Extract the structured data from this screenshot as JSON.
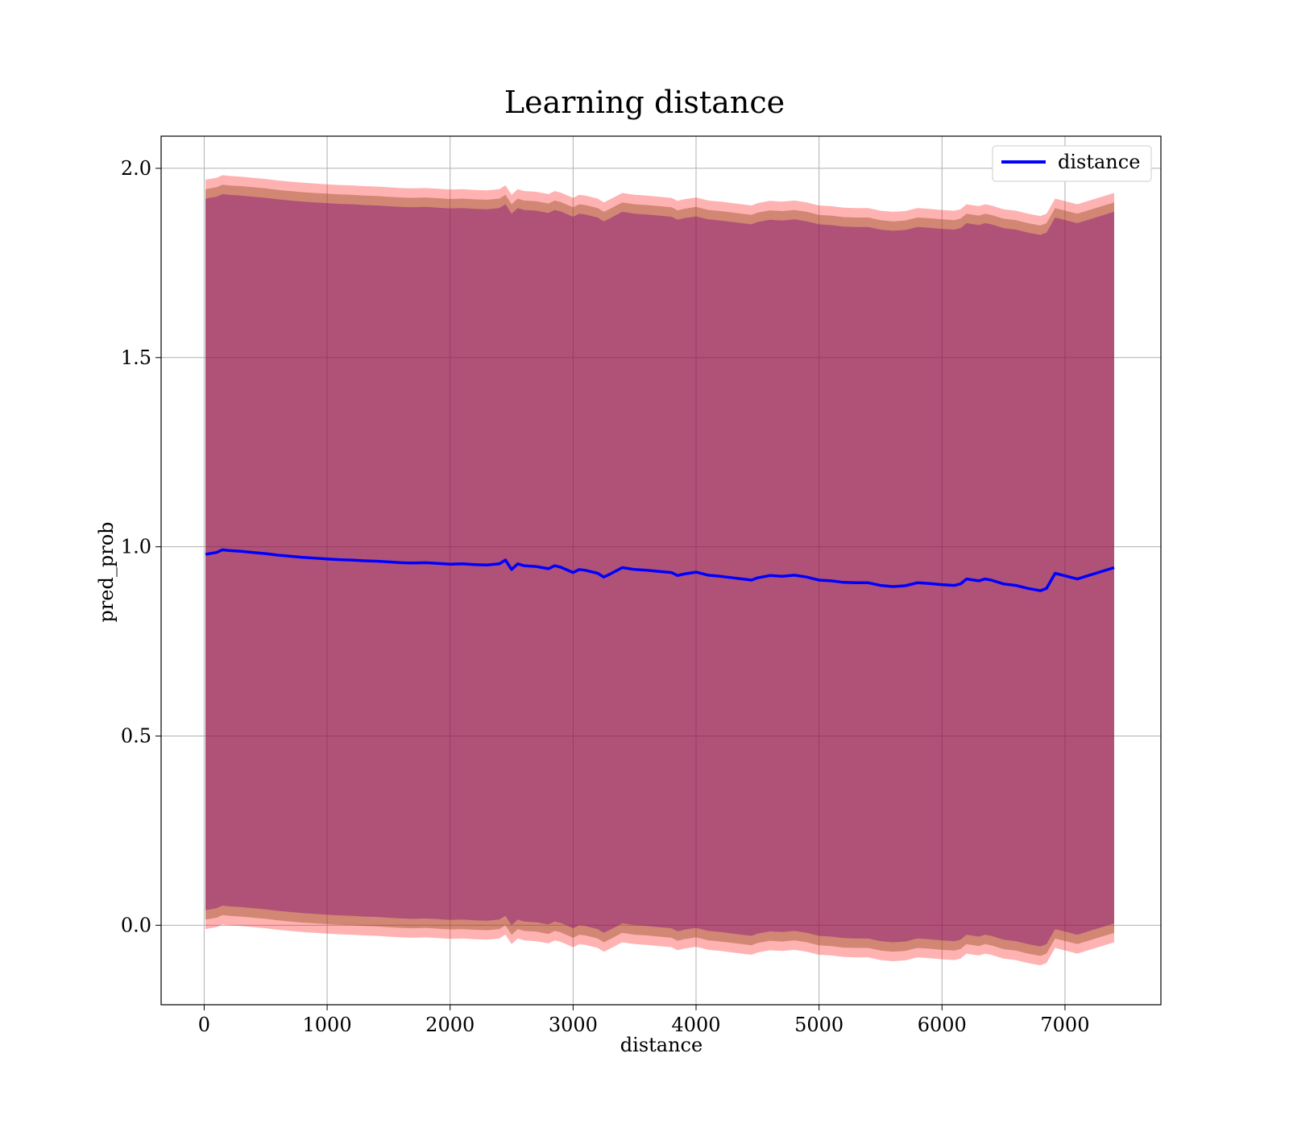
{
  "chart_data": {
    "type": "line",
    "title": "Learning distance",
    "xlabel": "distance",
    "ylabel": "pred_prob",
    "xlim": [
      -350,
      7780
    ],
    "ylim": [
      -0.21,
      2.085
    ],
    "xticks": [
      0,
      1000,
      2000,
      3000,
      4000,
      5000,
      6000,
      7000
    ],
    "xtick_labels": [
      "0",
      "1000",
      "2000",
      "3000",
      "4000",
      "5000",
      "6000",
      "7000"
    ],
    "yticks": [
      0.0,
      0.5,
      1.0,
      1.5,
      2.0
    ],
    "ytick_labels": [
      "0.0",
      "0.5",
      "1.0",
      "1.5",
      "2.0"
    ],
    "grid": true,
    "legend": {
      "position": "upper right",
      "entries": [
        "distance"
      ]
    },
    "colors": {
      "line": "#0000ff",
      "band_outer": "#ff0000",
      "band_mid": "#8b4513",
      "band_inner": "#800080"
    },
    "series": [
      {
        "name": "distance",
        "x": [
          10,
          100,
          150,
          200,
          300,
          400,
          500,
          600,
          700,
          800,
          900,
          1000,
          1100,
          1200,
          1300,
          1400,
          1500,
          1600,
          1700,
          1800,
          1900,
          2000,
          2100,
          2200,
          2300,
          2400,
          2450,
          2500,
          2550,
          2600,
          2700,
          2800,
          2850,
          2900,
          3000,
          3050,
          3100,
          3200,
          3250,
          3300,
          3400,
          3500,
          3600,
          3700,
          3800,
          3850,
          3900,
          4000,
          4100,
          4200,
          4300,
          4400,
          4450,
          4500,
          4600,
          4700,
          4800,
          4900,
          5000,
          5100,
          5200,
          5300,
          5400,
          5500,
          5600,
          5700,
          5800,
          5900,
          6000,
          6100,
          6150,
          6200,
          6300,
          6350,
          6400,
          6500,
          6600,
          6700,
          6800,
          6850,
          6920,
          7100,
          7400
        ],
        "values": [
          0.98,
          0.985,
          0.992,
          0.99,
          0.988,
          0.985,
          0.982,
          0.978,
          0.975,
          0.972,
          0.97,
          0.968,
          0.966,
          0.965,
          0.963,
          0.962,
          0.96,
          0.958,
          0.957,
          0.958,
          0.956,
          0.954,
          0.955,
          0.953,
          0.952,
          0.955,
          0.965,
          0.94,
          0.955,
          0.95,
          0.948,
          0.942,
          0.95,
          0.946,
          0.932,
          0.94,
          0.938,
          0.93,
          0.92,
          0.928,
          0.945,
          0.94,
          0.938,
          0.935,
          0.932,
          0.924,
          0.928,
          0.933,
          0.925,
          0.922,
          0.918,
          0.914,
          0.912,
          0.918,
          0.924,
          0.922,
          0.925,
          0.92,
          0.912,
          0.91,
          0.906,
          0.905,
          0.905,
          0.898,
          0.895,
          0.897,
          0.905,
          0.903,
          0.9,
          0.898,
          0.902,
          0.915,
          0.91,
          0.915,
          0.912,
          0.902,
          0.898,
          0.89,
          0.884,
          0.89,
          0.93,
          0.915,
          0.945
        ]
      }
    ],
    "bands": [
      {
        "name": "outer",
        "upper_offset": 0.99,
        "lower_offset": 0.99
      },
      {
        "name": "mid",
        "upper_offset": 0.965,
        "lower_offset": 0.965
      },
      {
        "name": "inner",
        "upper_offset": 0.94,
        "lower_offset": 0.94
      }
    ]
  }
}
